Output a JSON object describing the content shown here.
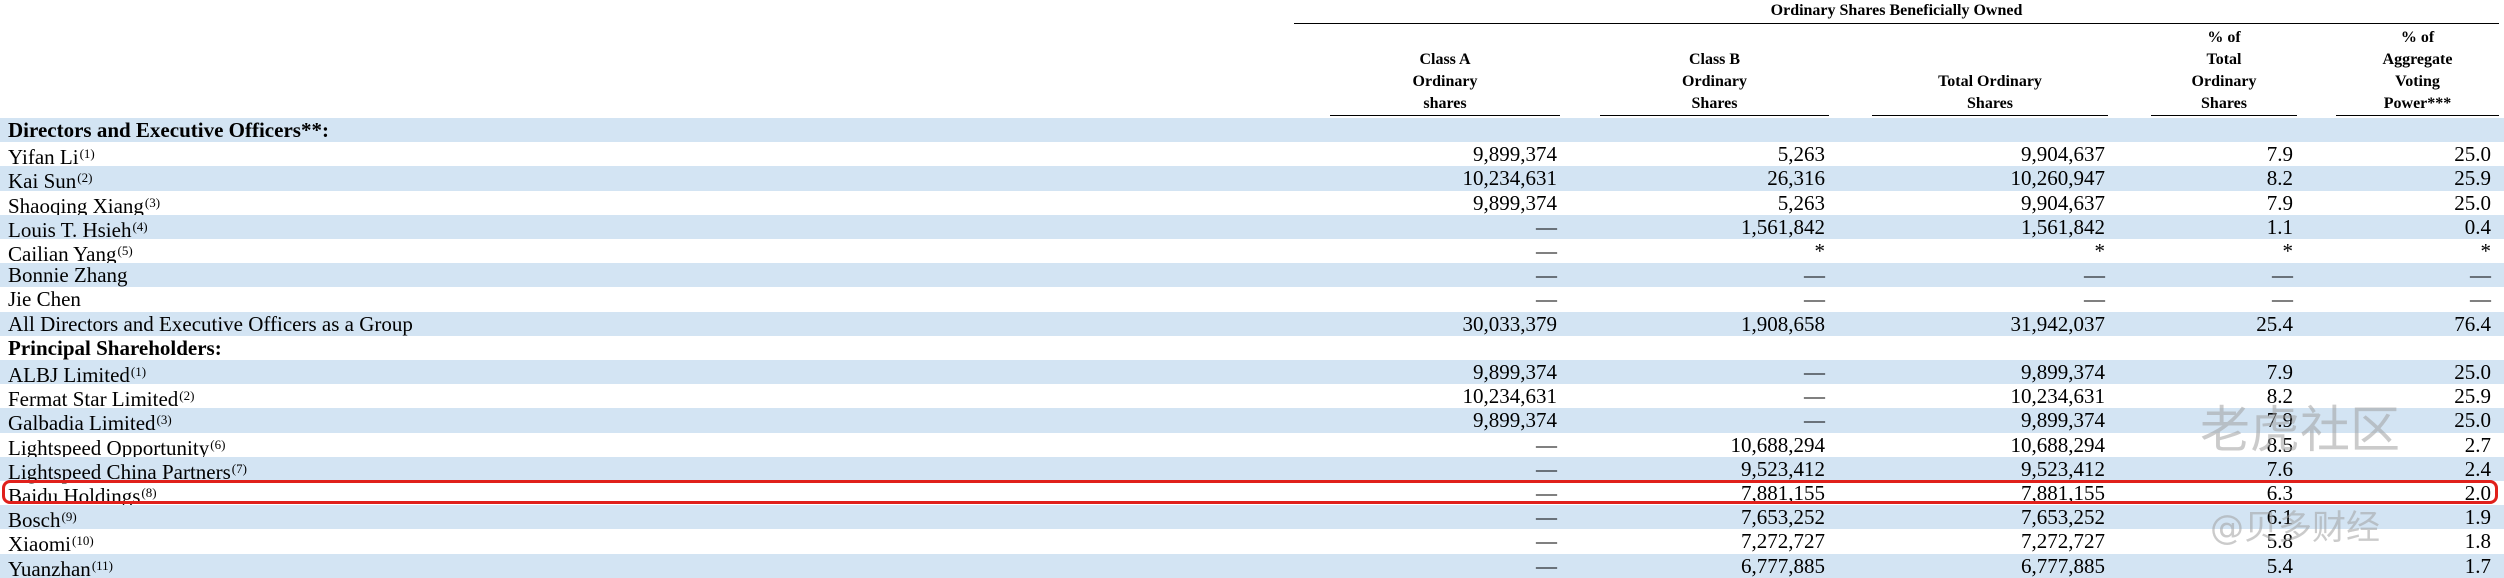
{
  "table": {
    "group_header": "Ordinary Shares Beneficially Owned",
    "columns": [
      "Class A\nOrdinary\nshares",
      "Class B\nOrdinary\nShares",
      "Total Ordinary\nShares",
      "% of\nTotal\nOrdinary\nShares",
      "% of\nAggregate\nVoting\nPower***"
    ],
    "rows": [
      {
        "label": "Directors and Executive Officers**:"
      },
      {
        "label": "Yifan Li",
        "note": "(1)",
        "cells": [
          "9,899,374",
          "5,263",
          "9,904,637",
          "7.9",
          "25.0"
        ]
      },
      {
        "label": "Kai Sun",
        "note": "(2)",
        "cells": [
          "10,234,631",
          "26,316",
          "10,260,947",
          "8.2",
          "25.9"
        ]
      },
      {
        "label": "Shaoqing Xiang",
        "note": "(3)",
        "cells": [
          "9,899,374",
          "5,263",
          "9,904,637",
          "7.9",
          "25.0"
        ]
      },
      {
        "label": "Louis T. Hsieh",
        "note": "(4)",
        "cells": [
          "—",
          "1,561,842",
          "1,561,842",
          "1.1",
          "0.4"
        ]
      },
      {
        "label": "Cailian Yang",
        "note": "(5)",
        "cells": [
          "—",
          "*",
          "*",
          "*",
          "*"
        ]
      },
      {
        "label": "Bonnie Zhang",
        "cells": [
          "—",
          "—",
          "—",
          "—",
          "—"
        ]
      },
      {
        "label": "Jie Chen",
        "cells": [
          "—",
          "—",
          "—",
          "—",
          "—"
        ]
      },
      {
        "label": "All Directors and Executive Officers as a Group",
        "cells": [
          "30,033,379",
          "1,908,658",
          "31,942,037",
          "25.4",
          "76.4"
        ]
      },
      {
        "label": "Principal Shareholders:"
      },
      {
        "label": "ALBJ Limited",
        "note": "(1)",
        "cells": [
          "9,899,374",
          "—",
          "9,899,374",
          "7.9",
          "25.0"
        ]
      },
      {
        "label": "Fermat Star Limited",
        "note": "(2)",
        "cells": [
          "10,234,631",
          "—",
          "10,234,631",
          "8.2",
          "25.9"
        ]
      },
      {
        "label": "Galbadia Limited",
        "note": "(3)",
        "cells": [
          "9,899,374",
          "—",
          "9,899,374",
          "7.9",
          "25.0"
        ]
      },
      {
        "label": "Lightspeed Opportunity",
        "note": "(6)",
        "cells": [
          "—",
          "10,688,294",
          "10,688,294",
          "8.5",
          "2.7"
        ]
      },
      {
        "label": "Lightspeed China Partners",
        "note": "(7)",
        "cells": [
          "—",
          "9,523,412",
          "9,523,412",
          "7.6",
          "2.4"
        ]
      },
      {
        "label": "Baidu Holdings",
        "note": "(8)",
        "cells": [
          "—",
          "7,881,155",
          "7,881,155",
          "6.3",
          "2.0"
        ]
      },
      {
        "label": "Bosch",
        "note": "(9)",
        "cells": [
          "—",
          "7,653,252",
          "7,653,252",
          "6.1",
          "1.9"
        ]
      },
      {
        "label": "Xiaomi",
        "note": "(10)",
        "cells": [
          "—",
          "7,272,727",
          "7,272,727",
          "5.8",
          "1.8"
        ]
      },
      {
        "label": "Yuanzhan",
        "note": "(11)",
        "cells": [
          "—",
          "6,777,885",
          "6,777,885",
          "5.4",
          "1.7"
        ]
      }
    ]
  },
  "watermarks": [
    "老虎社区",
    "@贝多财经"
  ]
}
